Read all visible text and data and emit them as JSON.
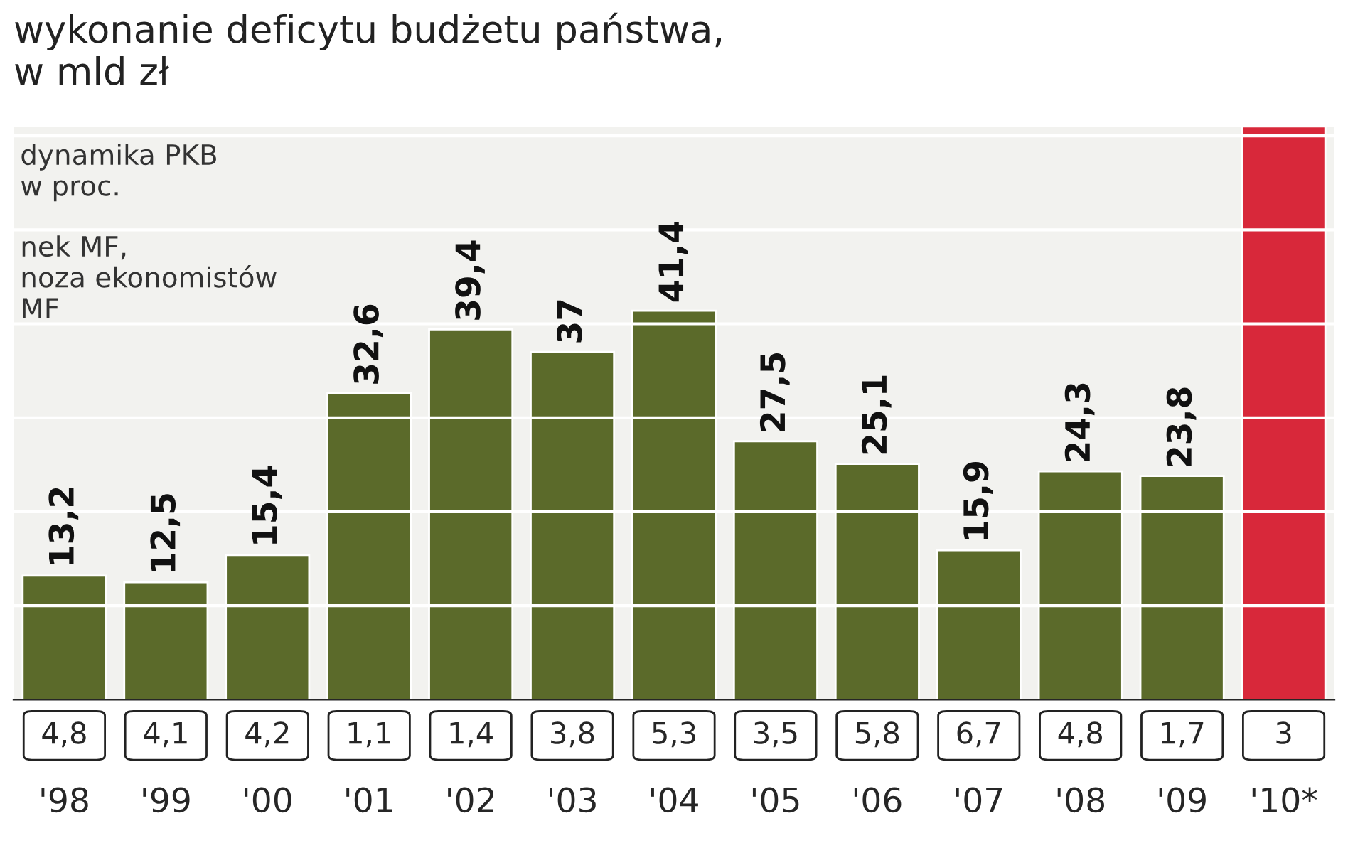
{
  "chart_data": {
    "type": "bar",
    "title": "wykonanie deficytu budżetu państwa,\nw mld zł",
    "annotations": [
      "dynamika PKB\nw proc.",
      "nek MF,\nnoza ekonomistów\nMF",
      "4,8",
      "4,1",
      "4,2",
      "1,1",
      "1,4",
      "3,8",
      "5,3",
      "3,5",
      "5,8",
      "6,7",
      "4,8",
      "1,7",
      "3"
    ],
    "categories": [
      "'98",
      "'99",
      "'00",
      "'01",
      "'02",
      "'03",
      "'04",
      "'05",
      "'06",
      "'07",
      "'08",
      "'09",
      "'10*"
    ],
    "colors": [
      "#5b6a2a",
      "#5b6a2a",
      "#5b6a2a",
      "#5b6a2a",
      "#5b6a2a",
      "#5b6a2a",
      "#5b6a2a",
      "#5b6a2a",
      "#5b6a2a",
      "#5b6a2a",
      "#5b6a2a",
      "#5b6a2a",
      "#d8283a"
    ],
    "values": [
      13.2,
      12.5,
      15.4,
      32.6,
      39.4,
      37,
      41.4,
      27.5,
      25.1,
      15.9,
      24.3,
      23.8,
      61
    ],
    "value_labels": [
      "13,2",
      "12,5",
      "15,4",
      "32,6",
      "39,4",
      "37",
      "41,4",
      "27,5",
      "25,1",
      "15,9",
      "24,3",
      "23,8",
      null
    ],
    "ylim": [
      0,
      61
    ],
    "yticks": [
      {
        "value": 10,
        "label": null
      },
      {
        "value": 20,
        "label": null
      },
      {
        "value": 30,
        "label": null
      },
      {
        "value": 40,
        "label": null
      },
      {
        "value": 50,
        "label": null
      },
      {
        "value": 60,
        "label": null
      }
    ],
    "grid": "y",
    "tick_labels": "x"
  }
}
